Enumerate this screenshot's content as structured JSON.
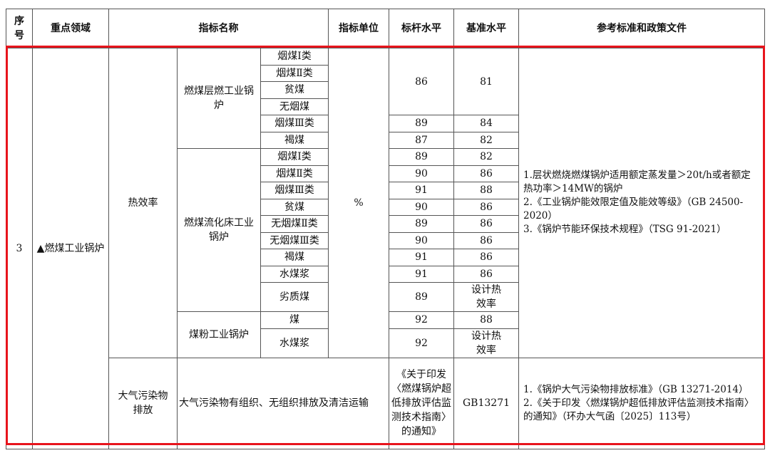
{
  "header": {
    "seq": "序号",
    "area": "重点领域",
    "indicator": "指标名称",
    "unit": "指标单位",
    "benchmark": "标杆水平",
    "baseline": "基准水平",
    "reference": "参考标准和政策文件"
  },
  "seq": "3",
  "area": "▲燃煤工业锅炉",
  "thermal": {
    "label": "热效率",
    "unit": "%",
    "reference": [
      "1.层状燃烧燃煤锅炉适用额定蒸发量＞20t/h或者额定热功率＞14MW的锅炉",
      "2.《工业锅炉能效限定值及能效等级》（GB 24500-2020）",
      "3.《锅炉节能环保技术规程》（TSG 91-2021）"
    ],
    "groups": [
      {
        "name": "燃煤层燃工业锅炉",
        "rows": [
          {
            "type": "烟煤Ⅰ类",
            "benchmark": "86",
            "baseline": "81"
          },
          {
            "type": "烟煤Ⅱ类"
          },
          {
            "type": "贫煤"
          },
          {
            "type": "无烟煤"
          },
          {
            "type": "烟煤Ⅲ类",
            "benchmark": "89",
            "baseline": "84"
          },
          {
            "type": "褐煤",
            "benchmark": "87",
            "baseline": "82"
          }
        ]
      },
      {
        "name": "燃煤流化床工业锅炉",
        "rows": [
          {
            "type": "烟煤Ⅰ类",
            "benchmark": "89",
            "baseline": "82"
          },
          {
            "type": "烟煤Ⅱ类",
            "benchmark": "90",
            "baseline": "86"
          },
          {
            "type": "烟煤Ⅲ类",
            "benchmark": "91",
            "baseline": "88"
          },
          {
            "type": "贫煤",
            "benchmark": "90",
            "baseline": "86"
          },
          {
            "type": "无烟煤Ⅱ类",
            "benchmark": "89",
            "baseline": "86"
          },
          {
            "type": "无烟煤Ⅲ类",
            "benchmark": "90",
            "baseline": "86"
          },
          {
            "type": "褐煤",
            "benchmark": "91",
            "baseline": "86"
          },
          {
            "type": "水煤浆",
            "benchmark": "91",
            "baseline": "86"
          },
          {
            "type": "劣质煤",
            "benchmark": "89",
            "baseline": "设计热效率"
          }
        ]
      },
      {
        "name": "煤粉工业锅炉",
        "rows": [
          {
            "type": "煤",
            "benchmark": "92",
            "baseline": "88"
          },
          {
            "type": "水煤浆",
            "benchmark": "92",
            "baseline": "设计热效率"
          }
        ]
      }
    ]
  },
  "air": {
    "label": "大气污染物排放",
    "indicator": "大气污染物有组织、无组织排放及清洁运输",
    "benchmark": "《关于印发〈燃煤锅炉超低排放评估监测技术指南〉的通知》",
    "baseline": "GB13271",
    "reference": [
      "1.《锅炉大气污染物排放标准》（GB 13271-2014）",
      "2.《关于印发〈燃煤锅炉超低排放评估监测技术指南〉的通知》（环办大气函〔2025〕113号）"
    ]
  },
  "colors": {
    "highlight": "#e8141c"
  }
}
